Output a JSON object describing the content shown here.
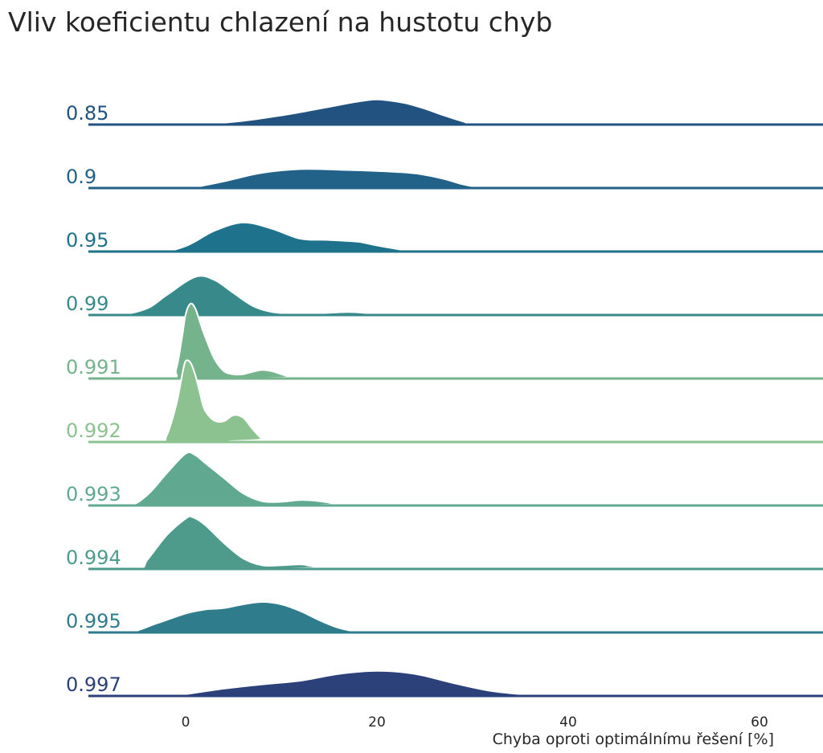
{
  "chart_data": {
    "type": "area",
    "title": "Vliv koeficientu chlazení na hustotu chyb",
    "xlabel": "Chyba oproti optimálnímu řešení [%]",
    "ylabel": "",
    "xlim": [
      -10,
      66
    ],
    "xticks": [
      "0",
      "20",
      "40",
      "60"
    ],
    "grid": false,
    "series": [
      {
        "name": "0.85",
        "color": "#22527f",
        "x": [
          -10,
          -3,
          2,
          6,
          10,
          14,
          17,
          19,
          20,
          21,
          23,
          25,
          27,
          29,
          30,
          33,
          66
        ],
        "y": [
          0,
          0,
          0.02,
          0.12,
          0.3,
          0.52,
          0.7,
          0.8,
          0.82,
          0.8,
          0.7,
          0.52,
          0.3,
          0.1,
          0.02,
          0,
          0
        ]
      },
      {
        "name": "0.9",
        "color": "#226289",
        "x": [
          -10,
          -1,
          1,
          4,
          8,
          12,
          16,
          20,
          24,
          27,
          29,
          31,
          34,
          66
        ],
        "y": [
          0,
          0,
          0.04,
          0.22,
          0.5,
          0.62,
          0.6,
          0.56,
          0.48,
          0.3,
          0.12,
          0.02,
          0,
          0
        ]
      },
      {
        "name": "0.95",
        "color": "#1f728b",
        "x": [
          -10,
          -3,
          0,
          3,
          6,
          9,
          12,
          15,
          18,
          20,
          23,
          25,
          27,
          66
        ],
        "y": [
          0,
          0,
          0.18,
          0.68,
          0.95,
          0.75,
          0.42,
          0.38,
          0.32,
          0.2,
          0.04,
          0,
          0,
          0
        ]
      },
      {
        "name": "0.99",
        "color": "#388a8a",
        "x": [
          -10,
          -7,
          -4,
          -2,
          1,
          3,
          5,
          7,
          9,
          11,
          14,
          17,
          19,
          20,
          21,
          22,
          66
        ],
        "y": [
          0,
          0,
          0.22,
          0.65,
          1.25,
          1.15,
          0.72,
          0.3,
          0.1,
          0.05,
          0.06,
          0.1,
          0.06,
          0.02,
          0,
          0,
          0
        ]
      },
      {
        "name": "0.991",
        "color": "#74b38c",
        "x": [
          -10,
          -1.8,
          -1,
          -0.4,
          0,
          0.5,
          1,
          1.5,
          2,
          3,
          4,
          5,
          6,
          7,
          8,
          9,
          10,
          11,
          12,
          66
        ],
        "y": [
          0,
          0,
          0.3,
          1.3,
          2.1,
          2.45,
          2.3,
          1.85,
          1.4,
          0.65,
          0.24,
          0.14,
          0.14,
          0.22,
          0.28,
          0.24,
          0.14,
          0.04,
          0,
          0
        ]
      },
      {
        "name": "0.992",
        "color": "#8cc190",
        "x": [
          -10,
          -3,
          -2,
          -1,
          -0.3,
          0,
          0.5,
          1,
          1.5,
          2,
          3,
          4,
          5,
          6,
          7,
          8,
          9,
          66
        ],
        "y": [
          0,
          0,
          0.2,
          1.2,
          2.3,
          2.65,
          2.6,
          2.2,
          1.6,
          1.05,
          0.7,
          0.68,
          0.88,
          0.8,
          0.42,
          0.1,
          0,
          0
        ]
      },
      {
        "name": "0.993",
        "color": "#60a990",
        "x": [
          -10,
          -6,
          -4,
          -2,
          0,
          1,
          2,
          4,
          6,
          8,
          10,
          12,
          14,
          16,
          17,
          66
        ],
        "y": [
          0,
          0,
          0.35,
          1.05,
          1.7,
          1.65,
          1.4,
          0.9,
          0.4,
          0.14,
          0.12,
          0.18,
          0.14,
          0.04,
          0,
          0
        ]
      },
      {
        "name": "0.994",
        "color": "#4e9b8c",
        "x": [
          -10,
          -5,
          -4,
          -2,
          0,
          0.7,
          2,
          4,
          6,
          8,
          10,
          12,
          13,
          14,
          15,
          66
        ],
        "y": [
          0,
          0,
          0.3,
          1.1,
          1.65,
          1.7,
          1.45,
          0.85,
          0.35,
          0.12,
          0.12,
          0.15,
          0.1,
          0.04,
          0,
          0
        ]
      },
      {
        "name": "0.995",
        "color": "#2f7c8c",
        "x": [
          -10,
          -6,
          -3,
          0,
          2,
          4,
          6,
          8,
          10,
          12,
          14,
          16,
          18,
          19,
          66
        ],
        "y": [
          0,
          0,
          0.3,
          0.62,
          0.75,
          0.8,
          0.92,
          1.0,
          0.92,
          0.7,
          0.4,
          0.15,
          0.02,
          0,
          0
        ]
      },
      {
        "name": "0.997",
        "color": "#2c4079",
        "x": [
          -10,
          -2,
          0,
          4,
          8,
          12,
          16,
          20,
          24,
          28,
          32,
          36,
          40,
          44,
          66
        ],
        "y": [
          0,
          0,
          0.06,
          0.24,
          0.38,
          0.5,
          0.72,
          0.82,
          0.72,
          0.42,
          0.16,
          0.04,
          0.01,
          0,
          0
        ]
      }
    ]
  }
}
